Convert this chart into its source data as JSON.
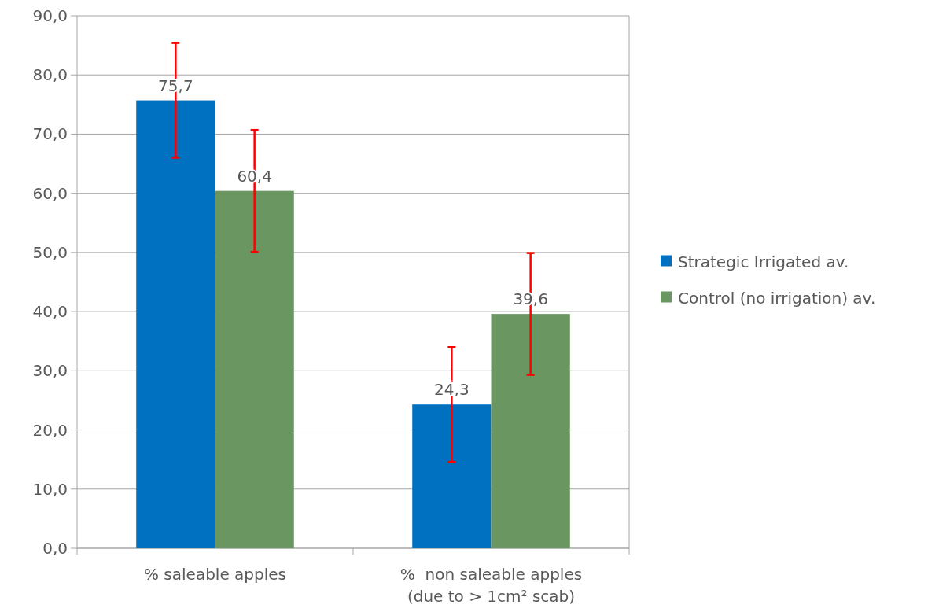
{
  "chart_data": {
    "type": "bar",
    "categories": [
      "% saleable apples",
      "%  non saleable apples (due to > 1cm² scab)"
    ],
    "series": [
      {
        "name": "Strategic Irrigated av.",
        "color": "#0070c0",
        "values": [
          75.7,
          24.3
        ],
        "value_labels": [
          "75,7",
          "24,3"
        ],
        "errors": [
          9.7,
          9.7
        ]
      },
      {
        "name": "Control (no irrigation) av.",
        "color": "#6a9662",
        "values": [
          60.4,
          39.6
        ],
        "value_labels": [
          "60,4",
          "39,6"
        ],
        "errors": [
          10.3,
          10.3
        ]
      }
    ],
    "ylim": [
      0,
      90
    ],
    "yticks": [
      {
        "value": 0,
        "label": "0,0"
      },
      {
        "value": 10,
        "label": "10,0"
      },
      {
        "value": 20,
        "label": "20,0"
      },
      {
        "value": 30,
        "label": "30,0"
      },
      {
        "value": 40,
        "label": "40,0"
      },
      {
        "value": 50,
        "label": "50,0"
      },
      {
        "value": 60,
        "label": "60,0"
      },
      {
        "value": 70,
        "label": "70,0"
      },
      {
        "value": 80,
        "label": "80,0"
      },
      {
        "value": 90,
        "label": "90,0"
      }
    ],
    "grid": "y",
    "legend": "right"
  }
}
